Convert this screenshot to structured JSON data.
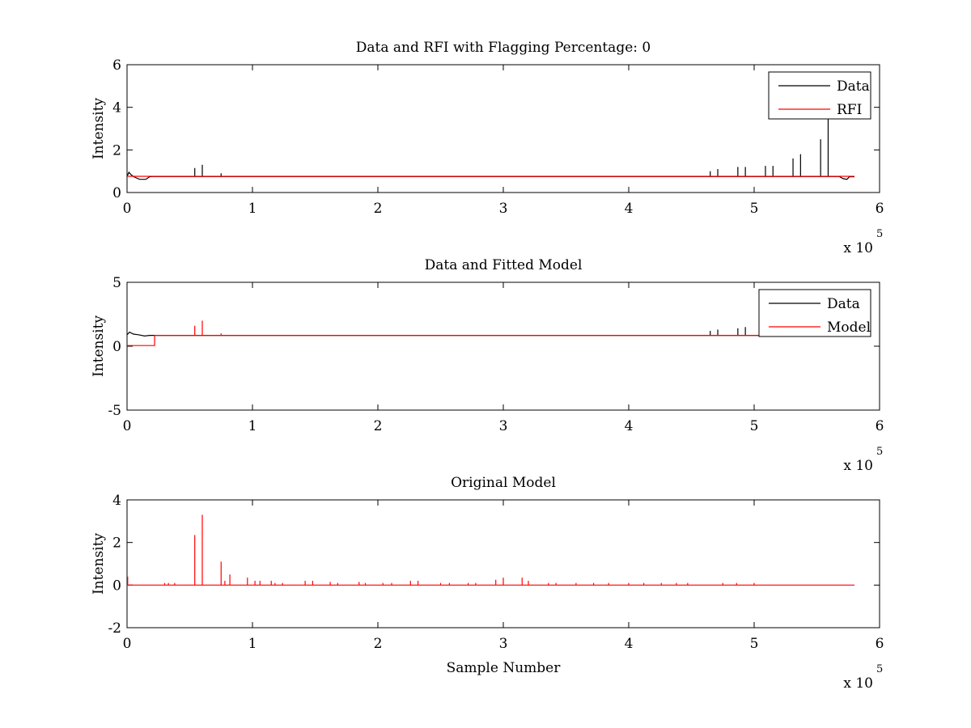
{
  "chart_data": [
    {
      "type": "line",
      "title": "Data and RFI with Flagging Percentage: 0",
      "xlabel": "",
      "ylabel": "Intensity",
      "xlim": [
        0,
        600000
      ],
      "ylim": [
        0,
        6
      ],
      "xticks": [
        0,
        1,
        2,
        3,
        4,
        5,
        6
      ],
      "yticks": [
        0,
        2,
        4,
        6
      ],
      "x_multiplier": {
        "base": "x 10",
        "exponent": "5"
      },
      "legend": {
        "placement": "top-right",
        "entries": [
          "Data",
          "RFI"
        ]
      },
      "series": [
        {
          "name": "Data",
          "color": "#000000",
          "baseline": 0.75,
          "start_dip": [
            [
              0,
              0.75
            ],
            [
              1500,
              0.95
            ],
            [
              3500,
              0.82
            ],
            [
              6000,
              0.72
            ],
            [
              10000,
              0.62
            ],
            [
              15000,
              0.62
            ],
            [
              18000,
              0.74
            ],
            [
              20000,
              0.75
            ]
          ],
          "end_dip": [
            [
              568000,
              0.75
            ],
            [
              571000,
              0.65
            ],
            [
              574000,
              0.62
            ],
            [
              576000,
              0.74
            ],
            [
              580000,
              0.74
            ]
          ],
          "end": 580000,
          "spikes": [
            [
              54000,
              1.15
            ],
            [
              60000,
              1.3
            ],
            [
              75000,
              0.9
            ],
            [
              465000,
              1.0
            ],
            [
              471000,
              1.1
            ],
            [
              487000,
              1.2
            ],
            [
              493000,
              1.2
            ],
            [
              509000,
              1.25
            ],
            [
              515000,
              1.25
            ],
            [
              531000,
              1.6
            ],
            [
              537000,
              1.8
            ],
            [
              553000,
              2.5
            ],
            [
              559000,
              3.5
            ]
          ]
        },
        {
          "name": "RFI",
          "color": "#ff0000",
          "baseline": 0.76,
          "start_dip": [],
          "end_dip": [],
          "end": 580000,
          "spikes": []
        }
      ]
    },
    {
      "type": "line",
      "title": "Data and Fitted Model",
      "xlabel": "",
      "ylabel": "Intensity",
      "xlim": [
        0,
        600000
      ],
      "ylim": [
        -5,
        5
      ],
      "xticks": [
        0,
        1,
        2,
        3,
        4,
        5,
        6
      ],
      "yticks": [
        -5,
        0,
        5
      ],
      "x_multiplier": {
        "base": "x 10",
        "exponent": "5"
      },
      "legend": {
        "placement": "top-right",
        "entries": [
          "Data",
          "Model"
        ]
      },
      "series": [
        {
          "name": "Data",
          "color": "#000000",
          "baseline": 0.85,
          "start_dip": [
            [
              0,
              0.9
            ],
            [
              2000,
              1.1
            ],
            [
              5000,
              0.95
            ],
            [
              9000,
              0.9
            ],
            [
              14000,
              0.8
            ],
            [
              18000,
              0.85
            ],
            [
              22000,
              0.85
            ]
          ],
          "end_dip": [],
          "end": 580000,
          "spikes": [
            [
              465000,
              1.2
            ],
            [
              471000,
              1.3
            ],
            [
              487000,
              1.4
            ],
            [
              493000,
              1.5
            ]
          ]
        },
        {
          "name": "Model",
          "color": "#ff0000",
          "baseline": 0.85,
          "start_dip": [
            [
              0,
              0.05
            ],
            [
              22000,
              0.05
            ],
            [
              22001,
              0.85
            ]
          ],
          "end_dip": [],
          "end": 580000,
          "spikes": [
            [
              54000,
              1.6
            ],
            [
              60000,
              2.0
            ],
            [
              75000,
              1.0
            ]
          ]
        }
      ]
    },
    {
      "type": "line",
      "title": "Original Model",
      "xlabel": "Sample Number",
      "ylabel": "Intensity",
      "xlim": [
        0,
        600000
      ],
      "ylim": [
        -2,
        4
      ],
      "xticks": [
        0,
        1,
        2,
        3,
        4,
        5,
        6
      ],
      "yticks": [
        -2,
        0,
        2,
        4
      ],
      "x_multiplier": {
        "base": "x 10",
        "exponent": "5"
      },
      "legend": null,
      "series": [
        {
          "name": "Model",
          "color": "#ff0000",
          "baseline": 0.0,
          "start_dip": [],
          "end_dip": [],
          "end": 580000,
          "spikes": [
            [
              500,
              0.4
            ],
            [
              30000,
              0.1
            ],
            [
              33000,
              0.1
            ],
            [
              38000,
              0.1
            ],
            [
              54000,
              2.35
            ],
            [
              60000,
              3.3
            ],
            [
              75000,
              1.1
            ],
            [
              78000,
              0.2
            ],
            [
              82000,
              0.5
            ],
            [
              96000,
              0.35
            ],
            [
              102000,
              0.2
            ],
            [
              106000,
              0.2
            ],
            [
              115000,
              0.2
            ],
            [
              118000,
              0.1
            ],
            [
              124000,
              0.1
            ],
            [
              142000,
              0.2
            ],
            [
              148000,
              0.2
            ],
            [
              162000,
              0.15
            ],
            [
              168000,
              0.1
            ],
            [
              185000,
              0.15
            ],
            [
              190000,
              0.1
            ],
            [
              204000,
              0.1
            ],
            [
              211000,
              0.1
            ],
            [
              226000,
              0.2
            ],
            [
              232000,
              0.2
            ],
            [
              250000,
              0.1
            ],
            [
              257000,
              0.1
            ],
            [
              272000,
              0.1
            ],
            [
              278000,
              0.1
            ],
            [
              294000,
              0.25
            ],
            [
              300000,
              0.35
            ],
            [
              315000,
              0.35
            ],
            [
              320000,
              0.2
            ],
            [
              336000,
              0.1
            ],
            [
              342000,
              0.1
            ],
            [
              358000,
              0.1
            ],
            [
              372000,
              0.1
            ],
            [
              384000,
              0.1
            ],
            [
              400000,
              0.1
            ],
            [
              412000,
              0.1
            ],
            [
              426000,
              0.1
            ],
            [
              438000,
              0.1
            ],
            [
              447000,
              0.1
            ],
            [
              475000,
              0.1
            ],
            [
              486000,
              0.1
            ],
            [
              500000,
              0.1
            ]
          ]
        }
      ]
    }
  ]
}
